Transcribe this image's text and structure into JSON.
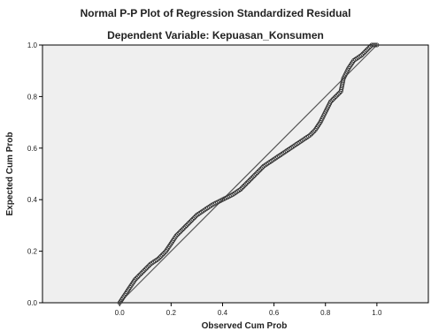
{
  "chart_data": {
    "type": "scatter",
    "title": "Normal P-P Plot of Regression Standardized Residual",
    "subtitle": "Dependent Variable: Kepuasan_Konsumen",
    "xlabel": "Observed Cum Prob",
    "ylabel": "Expected Cum Prob",
    "xlim": [
      -0.3,
      1.2
    ],
    "ylim": [
      0.0,
      1.0
    ],
    "xticks": [
      "0.0",
      "0.2",
      "0.4",
      "0.6",
      "0.8",
      "1.0"
    ],
    "yticks": [
      "0.0",
      "0.2",
      "0.4",
      "0.6",
      "0.8",
      "1.0"
    ],
    "grid": false,
    "reference_line": {
      "x": [
        0.0,
        1.0
      ],
      "y": [
        0.0,
        1.0
      ]
    },
    "curve_points": [
      [
        0.0,
        0.0
      ],
      [
        0.02,
        0.03
      ],
      [
        0.04,
        0.06
      ],
      [
        0.06,
        0.09
      ],
      [
        0.08,
        0.11
      ],
      [
        0.1,
        0.13
      ],
      [
        0.12,
        0.15
      ],
      [
        0.15,
        0.17
      ],
      [
        0.18,
        0.2
      ],
      [
        0.2,
        0.23
      ],
      [
        0.22,
        0.26
      ],
      [
        0.25,
        0.29
      ],
      [
        0.28,
        0.32
      ],
      [
        0.3,
        0.34
      ],
      [
        0.33,
        0.36
      ],
      [
        0.36,
        0.38
      ],
      [
        0.4,
        0.4
      ],
      [
        0.44,
        0.42
      ],
      [
        0.47,
        0.44
      ],
      [
        0.5,
        0.47
      ],
      [
        0.53,
        0.5
      ],
      [
        0.56,
        0.53
      ],
      [
        0.59,
        0.55
      ],
      [
        0.62,
        0.57
      ],
      [
        0.65,
        0.59
      ],
      [
        0.68,
        0.61
      ],
      [
        0.71,
        0.63
      ],
      [
        0.74,
        0.65
      ],
      [
        0.76,
        0.67
      ],
      [
        0.78,
        0.7
      ],
      [
        0.8,
        0.74
      ],
      [
        0.82,
        0.78
      ],
      [
        0.84,
        0.8
      ],
      [
        0.86,
        0.82
      ],
      [
        0.87,
        0.87
      ],
      [
        0.89,
        0.91
      ],
      [
        0.91,
        0.94
      ],
      [
        0.94,
        0.96
      ],
      [
        0.96,
        0.98
      ],
      [
        0.98,
        1.0
      ],
      [
        1.0,
        1.0
      ]
    ],
    "colors": {
      "plot_bg": "#efefef",
      "line": "#555555",
      "points": "#333333"
    }
  }
}
